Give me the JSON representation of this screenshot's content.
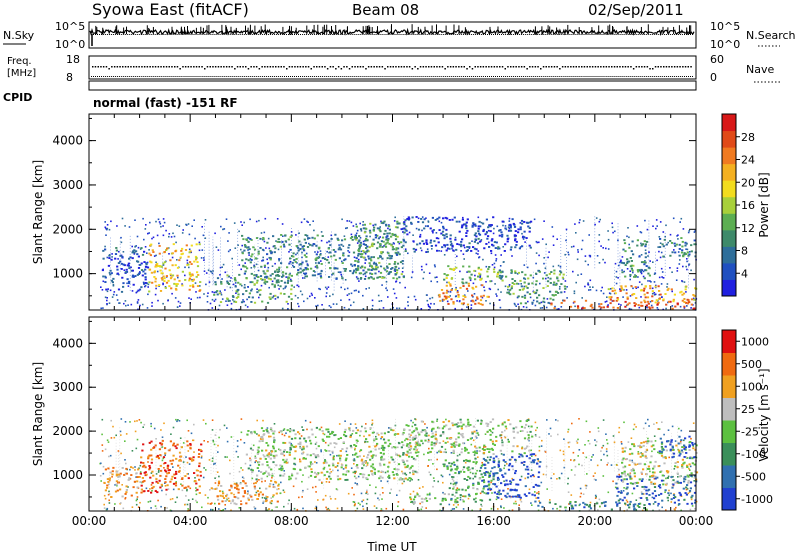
{
  "header": {
    "station": "Syowa East (fitACF)",
    "beam": "Beam 08",
    "date": "02/Sep/2011"
  },
  "noise_panel": {
    "left_label": "N.Sky",
    "right_label": "N.Search",
    "left_ticks": [
      "10^5",
      "10^0"
    ],
    "right_ticks": [
      "10^5",
      "10^0"
    ]
  },
  "freq_panel": {
    "left_label_1": "Freq.",
    "left_label_2": "[MHz]",
    "right_label": "Nave",
    "left_ticks": [
      "18",
      "8"
    ],
    "right_ticks": [
      "60",
      "0"
    ]
  },
  "cpid": {
    "label": "CPID",
    "text": "normal (fast) -151 RF"
  },
  "chart_data": [
    {
      "type": "heatmap",
      "name": "power",
      "ylabel": "Slant Range [km]",
      "xlabel": "",
      "ylim": [
        180,
        4600
      ],
      "yticks": [
        1000,
        2000,
        3000,
        4000
      ],
      "colorbar_label": "Power [dB]",
      "colorbar_ticks": [
        "4",
        "8",
        "12",
        "16",
        "20",
        "24",
        "28"
      ],
      "colorbar_colors": [
        "#2020e0",
        "#2050c0",
        "#2e6e9a",
        "#3e8a6a",
        "#5cae52",
        "#a8d03a",
        "#f2dc1e",
        "#f4b020",
        "#f07a20",
        "#e04a18",
        "#d81818"
      ],
      "regions": [
        {
          "t": [
            2.3,
            4.4
          ],
          "r": [
            600,
            1700
          ],
          "val": 0.65
        },
        {
          "t": [
            0.5,
            2.3
          ],
          "r": [
            600,
            1600
          ],
          "val": 0.15
        },
        {
          "t": [
            4.9,
            8.0
          ],
          "r": [
            350,
            1000
          ],
          "val": 0.35
        },
        {
          "t": [
            6.0,
            12.2
          ],
          "r": [
            900,
            1900
          ],
          "val": 0.3
        },
        {
          "t": [
            10.5,
            12.5
          ],
          "r": [
            900,
            2200
          ],
          "val": 0.35
        },
        {
          "t": [
            12.3,
            17.5
          ],
          "r": [
            1500,
            2300
          ],
          "val": 0.12
        },
        {
          "t": [
            13.8,
            15.8
          ],
          "r": [
            300,
            800
          ],
          "val": 0.75
        },
        {
          "t": [
            14.0,
            16.2
          ],
          "r": [
            800,
            1200
          ],
          "val": 0.5
        },
        {
          "t": [
            16.2,
            18.8
          ],
          "r": [
            350,
            1100
          ],
          "val": 0.35
        },
        {
          "t": [
            18.2,
            24.0
          ],
          "r": [
            230,
            420
          ],
          "val": 0.88
        },
        {
          "t": [
            20.5,
            24.0
          ],
          "r": [
            350,
            750
          ],
          "val": 0.7
        },
        {
          "t": [
            21.0,
            22.2
          ],
          "r": [
            900,
            1800
          ],
          "val": 0.3
        },
        {
          "t": [
            22.5,
            24.0
          ],
          "r": [
            1400,
            1900
          ],
          "val": 0.25
        }
      ]
    },
    {
      "type": "heatmap",
      "name": "velocity",
      "ylabel": "Slant Range [km]",
      "xlabel": "Time UT",
      "ylim": [
        180,
        4600
      ],
      "yticks": [
        1000,
        2000,
        3000,
        4000
      ],
      "xticks": [
        "00:00",
        "04:00",
        "08:00",
        "12:00",
        "16:00",
        "20:00",
        "00:00"
      ],
      "colorbar_label": "Velocity [m s⁻¹]",
      "colorbar_ticks": [
        "1000",
        "500",
        "100",
        "25",
        "-25",
        "-100",
        "-500",
        "-1000"
      ],
      "colorbar_colors": [
        "#2040d0",
        "#3070b0",
        "#3a8f5a",
        "#5cc040",
        "#bebebe",
        "#f0a020",
        "#f06a10",
        "#e01010"
      ],
      "regions": [
        {
          "t": [
            2.0,
            4.4
          ],
          "r": [
            600,
            1800
          ],
          "val": 0.82
        },
        {
          "t": [
            0.5,
            2.0
          ],
          "r": [
            500,
            1200
          ],
          "val": 0.7
        },
        {
          "t": [
            4.7,
            7.5
          ],
          "r": [
            350,
            900
          ],
          "val": 0.7
        },
        {
          "t": [
            6.2,
            13.0
          ],
          "r": [
            900,
            2100
          ],
          "val": 0.5
        },
        {
          "t": [
            12.5,
            17.5
          ],
          "r": [
            1500,
            2300
          ],
          "val": 0.5
        },
        {
          "t": [
            12.5,
            14.5
          ],
          "r": [
            350,
            600
          ],
          "val": 0.5
        },
        {
          "t": [
            14.0,
            16.2
          ],
          "r": [
            400,
            1400
          ],
          "val": 0.35
        },
        {
          "t": [
            15.5,
            17.8
          ],
          "r": [
            500,
            1500
          ],
          "val": 0.05
        },
        {
          "t": [
            17.5,
            22.0
          ],
          "r": [
            230,
            420
          ],
          "val": 0.25
        },
        {
          "t": [
            20.8,
            24.0
          ],
          "r": [
            350,
            1000
          ],
          "val": 0.15
        },
        {
          "t": [
            21.0,
            24.0
          ],
          "r": [
            800,
            1800
          ],
          "val": 0.55
        },
        {
          "t": [
            22.5,
            24.0
          ],
          "r": [
            1400,
            1900
          ],
          "val": 0.1
        }
      ]
    }
  ]
}
